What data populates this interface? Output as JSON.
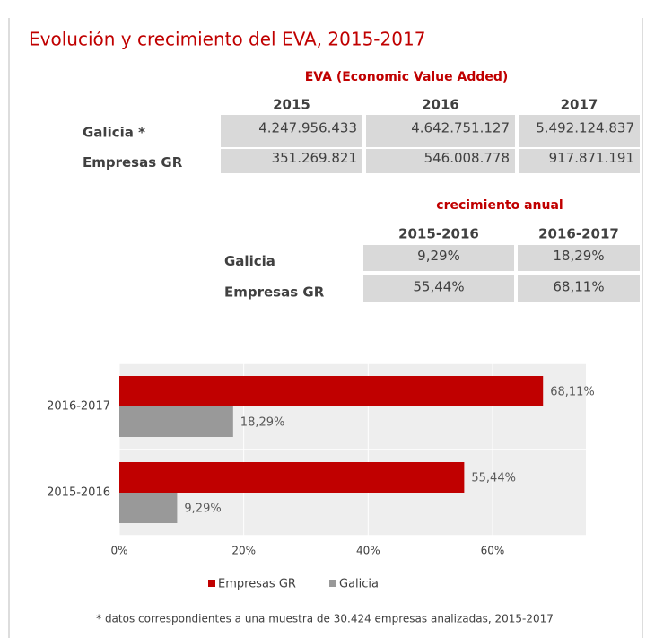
{
  "title": "Evolución y crecimiento del EVA, 2015-2017",
  "eva_table": {
    "title": "EVA (Economic Value Added)",
    "columns": [
      "2015",
      "2016",
      "2017"
    ],
    "rows": [
      {
        "label": "Galicia *",
        "cells": [
          "4.247.956.433",
          "4.642.751.127",
          "5.492.124.837"
        ]
      },
      {
        "label": "Empresas GR",
        "cells": [
          "351.269.821",
          "546.008.778",
          "917.871.191"
        ]
      }
    ]
  },
  "growth_table": {
    "title": "crecimiento anual",
    "columns": [
      "2015-2016",
      "2016-2017"
    ],
    "rows": [
      {
        "label": "Galicia",
        "cells": [
          "9,29%",
          "18,29%"
        ]
      },
      {
        "label": "Empresas GR",
        "cells": [
          "55,44%",
          "68,11%"
        ]
      }
    ]
  },
  "chart_data": {
    "type": "barh",
    "categories": [
      "2016-2017",
      "2015-2016"
    ],
    "series": [
      {
        "name": "Empresas GR",
        "color": "#c00000",
        "values": [
          68.11,
          55.44
        ],
        "value_labels": [
          "68,11%",
          "55,44%"
        ]
      },
      {
        "name": "Galicia",
        "color": "#999999",
        "values": [
          18.29,
          9.29
        ],
        "value_labels": [
          "18,29%",
          "9,29%"
        ]
      }
    ],
    "xlim": [
      0,
      75
    ],
    "xticks": [
      {
        "value": 0,
        "label": "0%"
      },
      {
        "value": 20,
        "label": "20%"
      },
      {
        "value": 40,
        "label": "40%"
      },
      {
        "value": 60,
        "label": "60%"
      }
    ],
    "grid": true,
    "legend": "bottom"
  },
  "footnote": "* datos correspondientes a una muestra de 30.424 empresas analizadas, 2015-2017"
}
